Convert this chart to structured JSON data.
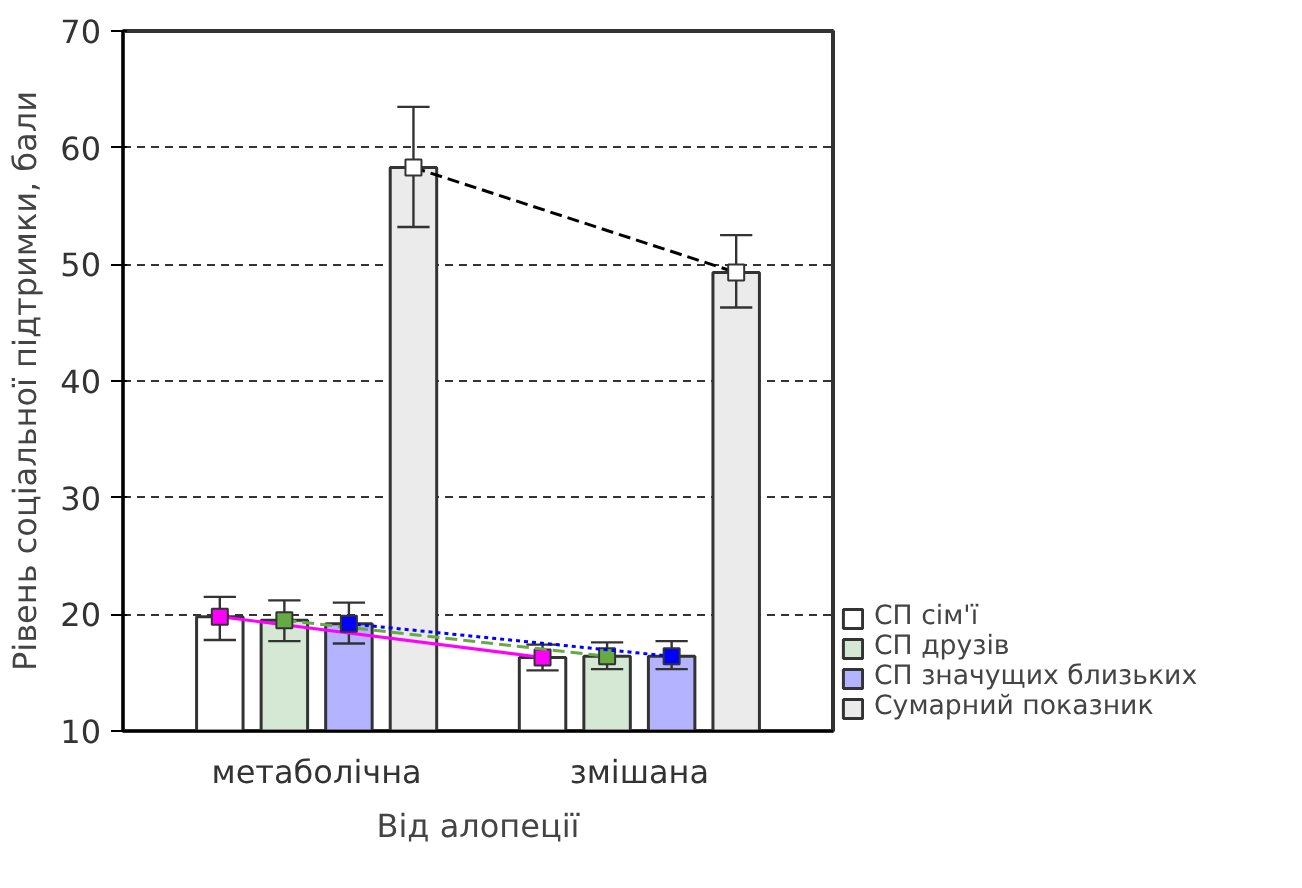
{
  "chart_data": {
    "type": "bar",
    "xlabel": "Від алопеції",
    "ylabel": "Рівень соціальної підтримки, бали",
    "categories": [
      "метаболічна",
      "змішана"
    ],
    "ylim": [
      10,
      70
    ],
    "yticks": [
      10,
      20,
      30,
      40,
      50,
      60,
      70
    ],
    "grid": "y",
    "legend": "bottom right",
    "marker": "square",
    "series": [
      {
        "name": "СП сім'ї",
        "color": "#ffffff",
        "values": [
          19.8,
          16.3
        ],
        "errors": [
          [
            17.8,
            21.5
          ],
          [
            15.2,
            17.4
          ]
        ]
      },
      {
        "name": "СП друзів",
        "color": "#d5e8d4",
        "values": [
          19.5,
          16.4
        ],
        "errors": [
          [
            17.7,
            21.2
          ],
          [
            15.3,
            17.6
          ]
        ]
      },
      {
        "name": "СП значущих близьких",
        "color": "#b3b3ff",
        "values": [
          19.2,
          16.4
        ],
        "errors": [
          [
            17.5,
            21.0
          ],
          [
            15.3,
            17.7
          ]
        ]
      },
      {
        "name": "Сумарний показник",
        "color": "#ebebeb",
        "values": [
          58.3,
          49.3
        ],
        "errors": [
          [
            53.2,
            63.5
          ],
          [
            46.3,
            52.5
          ]
        ]
      },
      {
        "type": "line",
        "color": "#ff00ff",
        "line_style": "solid",
        "values": [
          19.8,
          16.3
        ]
      },
      {
        "type": "line",
        "color": "#66aa44",
        "line_style": "dashed",
        "values": [
          19.5,
          16.4
        ]
      },
      {
        "type": "line",
        "color": "#0000ff",
        "line_style": "dotted",
        "values": [
          19.2,
          16.4
        ]
      },
      {
        "type": "line",
        "color": "#000000",
        "line_style": "dashed",
        "values": [
          58.3,
          49.3
        ]
      }
    ]
  }
}
